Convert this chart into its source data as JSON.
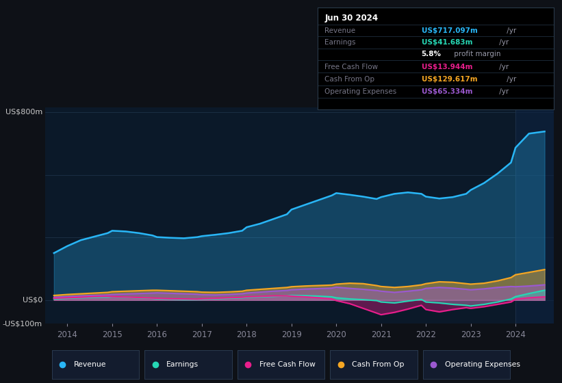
{
  "bg_color": "#0e1117",
  "plot_bg_color": "#0b1929",
  "highlight_bg": "#142035",
  "revenue_color": "#29b6f6",
  "earnings_color": "#26d7b5",
  "fcf_color": "#e91e8c",
  "cashfromop_color": "#f5a623",
  "opex_color": "#9b59d0",
  "ylim": [
    -100,
    820
  ],
  "xlim_start": 2013.5,
  "xlim_end": 2024.85,
  "xtick_positions": [
    2014,
    2015,
    2016,
    2017,
    2018,
    2019,
    2020,
    2021,
    2022,
    2023,
    2024
  ],
  "xtick_labels": [
    "2014",
    "2015",
    "2016",
    "2017",
    "2018",
    "2019",
    "2020",
    "2021",
    "2022",
    "2023",
    "2024"
  ],
  "revenue_x": [
    2013.7,
    2014.0,
    2014.3,
    2014.6,
    2014.9,
    2015.0,
    2015.3,
    2015.6,
    2015.9,
    2016.0,
    2016.3,
    2016.6,
    2016.9,
    2017.0,
    2017.3,
    2017.6,
    2017.9,
    2018.0,
    2018.3,
    2018.6,
    2018.9,
    2019.0,
    2019.3,
    2019.6,
    2019.9,
    2020.0,
    2020.3,
    2020.6,
    2020.9,
    2021.0,
    2021.3,
    2021.6,
    2021.9,
    2022.0,
    2022.3,
    2022.6,
    2022.9,
    2023.0,
    2023.3,
    2023.6,
    2023.9,
    2024.0,
    2024.3,
    2024.65
  ],
  "revenue_y": [
    200,
    230,
    255,
    270,
    285,
    295,
    292,
    285,
    275,
    268,
    265,
    263,
    268,
    272,
    278,
    285,
    295,
    310,
    325,
    345,
    365,
    385,
    405,
    425,
    445,
    455,
    448,
    440,
    430,
    438,
    452,
    458,
    452,
    440,
    432,
    438,
    452,
    468,
    498,
    538,
    585,
    648,
    708,
    717
  ],
  "earnings_x": [
    2013.7,
    2014.0,
    2014.3,
    2014.6,
    2014.9,
    2015.0,
    2015.3,
    2015.6,
    2015.9,
    2016.0,
    2016.3,
    2016.6,
    2016.9,
    2017.0,
    2017.3,
    2017.6,
    2017.9,
    2018.0,
    2018.3,
    2018.6,
    2018.9,
    2019.0,
    2019.3,
    2019.6,
    2019.9,
    2020.0,
    2020.3,
    2020.6,
    2020.9,
    2021.0,
    2021.3,
    2021.6,
    2021.9,
    2022.0,
    2022.3,
    2022.6,
    2022.9,
    2023.0,
    2023.3,
    2023.6,
    2023.9,
    2024.0,
    2024.3,
    2024.65
  ],
  "earnings_y": [
    5,
    8,
    10,
    12,
    13,
    14,
    12,
    10,
    8,
    6,
    4,
    2,
    2,
    4,
    6,
    8,
    10,
    12,
    14,
    16,
    18,
    20,
    19,
    17,
    14,
    10,
    5,
    2,
    -2,
    -8,
    -12,
    -4,
    3,
    -8,
    -12,
    -18,
    -22,
    -25,
    -18,
    -8,
    5,
    15,
    28,
    42
  ],
  "fcf_x": [
    2013.7,
    2014.0,
    2014.3,
    2014.6,
    2014.9,
    2015.0,
    2015.3,
    2015.6,
    2015.9,
    2016.0,
    2016.3,
    2016.6,
    2016.9,
    2017.0,
    2017.3,
    2017.6,
    2017.9,
    2018.0,
    2018.3,
    2018.6,
    2018.9,
    2019.0,
    2019.3,
    2019.6,
    2019.9,
    2020.0,
    2020.3,
    2020.6,
    2020.9,
    2021.0,
    2021.3,
    2021.6,
    2021.9,
    2022.0,
    2022.3,
    2022.6,
    2022.9,
    2023.0,
    2023.3,
    2023.6,
    2023.9,
    2024.0,
    2024.3,
    2024.65
  ],
  "fcf_y": [
    8,
    10,
    12,
    15,
    16,
    15,
    13,
    11,
    9,
    8,
    6,
    5,
    4,
    6,
    8,
    10,
    12,
    14,
    16,
    18,
    18,
    17,
    14,
    10,
    5,
    -2,
    -15,
    -35,
    -55,
    -62,
    -52,
    -38,
    -22,
    -40,
    -50,
    -40,
    -32,
    -35,
    -28,
    -18,
    -8,
    4,
    10,
    14
  ],
  "cashfromop_x": [
    2013.7,
    2014.0,
    2014.3,
    2014.6,
    2014.9,
    2015.0,
    2015.3,
    2015.6,
    2015.9,
    2016.0,
    2016.3,
    2016.6,
    2016.9,
    2017.0,
    2017.3,
    2017.6,
    2017.9,
    2018.0,
    2018.3,
    2018.6,
    2018.9,
    2019.0,
    2019.3,
    2019.6,
    2019.9,
    2020.0,
    2020.3,
    2020.6,
    2020.9,
    2021.0,
    2021.3,
    2021.6,
    2021.9,
    2022.0,
    2022.3,
    2022.6,
    2022.9,
    2023.0,
    2023.3,
    2023.6,
    2023.9,
    2024.0,
    2024.3,
    2024.65
  ],
  "cashfromop_y": [
    20,
    24,
    27,
    30,
    33,
    36,
    38,
    40,
    42,
    42,
    40,
    38,
    36,
    34,
    33,
    35,
    38,
    42,
    46,
    50,
    54,
    57,
    60,
    62,
    64,
    68,
    72,
    70,
    62,
    58,
    54,
    58,
    65,
    70,
    78,
    76,
    70,
    68,
    72,
    82,
    96,
    108,
    118,
    130
  ],
  "opex_x": [
    2013.7,
    2014.0,
    2014.3,
    2014.6,
    2014.9,
    2015.0,
    2015.3,
    2015.6,
    2015.9,
    2016.0,
    2016.3,
    2016.6,
    2016.9,
    2017.0,
    2017.3,
    2017.6,
    2017.9,
    2018.0,
    2018.3,
    2018.6,
    2018.9,
    2019.0,
    2019.3,
    2019.6,
    2019.9,
    2020.0,
    2020.3,
    2020.6,
    2020.9,
    2021.0,
    2021.3,
    2021.6,
    2021.9,
    2022.0,
    2022.3,
    2022.6,
    2022.9,
    2023.0,
    2023.3,
    2023.6,
    2023.9,
    2024.0,
    2024.3,
    2024.65
  ],
  "opex_y": [
    12,
    15,
    18,
    20,
    22,
    24,
    26,
    28,
    30,
    31,
    29,
    27,
    25,
    23,
    22,
    24,
    27,
    30,
    34,
    38,
    41,
    44,
    47,
    49,
    51,
    55,
    50,
    46,
    41,
    38,
    33,
    38,
    44,
    50,
    54,
    51,
    46,
    44,
    48,
    54,
    58,
    57,
    60,
    65
  ],
  "legend_items": [
    {
      "label": "Revenue",
      "color": "#29b6f6"
    },
    {
      "label": "Earnings",
      "color": "#26d7b5"
    },
    {
      "label": "Free Cash Flow",
      "color": "#e91e8c"
    },
    {
      "label": "Cash From Op",
      "color": "#f5a623"
    },
    {
      "label": "Operating Expenses",
      "color": "#9b59d0"
    }
  ],
  "infobox_title": "Jun 30 2024",
  "infobox_rows": [
    {
      "label": "Revenue",
      "value": "US$717.097m",
      "unit": " /yr",
      "value_color": "#29b6f6"
    },
    {
      "label": "Earnings",
      "value": "US$41.683m",
      "unit": " /yr",
      "value_color": "#26d7b5"
    },
    {
      "label": "",
      "value": "5.8%",
      "unit": " profit margin",
      "value_color": "#ffffff"
    },
    {
      "label": "Free Cash Flow",
      "value": "US$13.944m",
      "unit": " /yr",
      "value_color": "#e91e8c"
    },
    {
      "label": "Cash From Op",
      "value": "US$129.617m",
      "unit": " /yr",
      "value_color": "#f5a623"
    },
    {
      "label": "Operating Expenses",
      "value": "US$65.334m",
      "unit": " /yr",
      "value_color": "#9b59d0"
    }
  ]
}
